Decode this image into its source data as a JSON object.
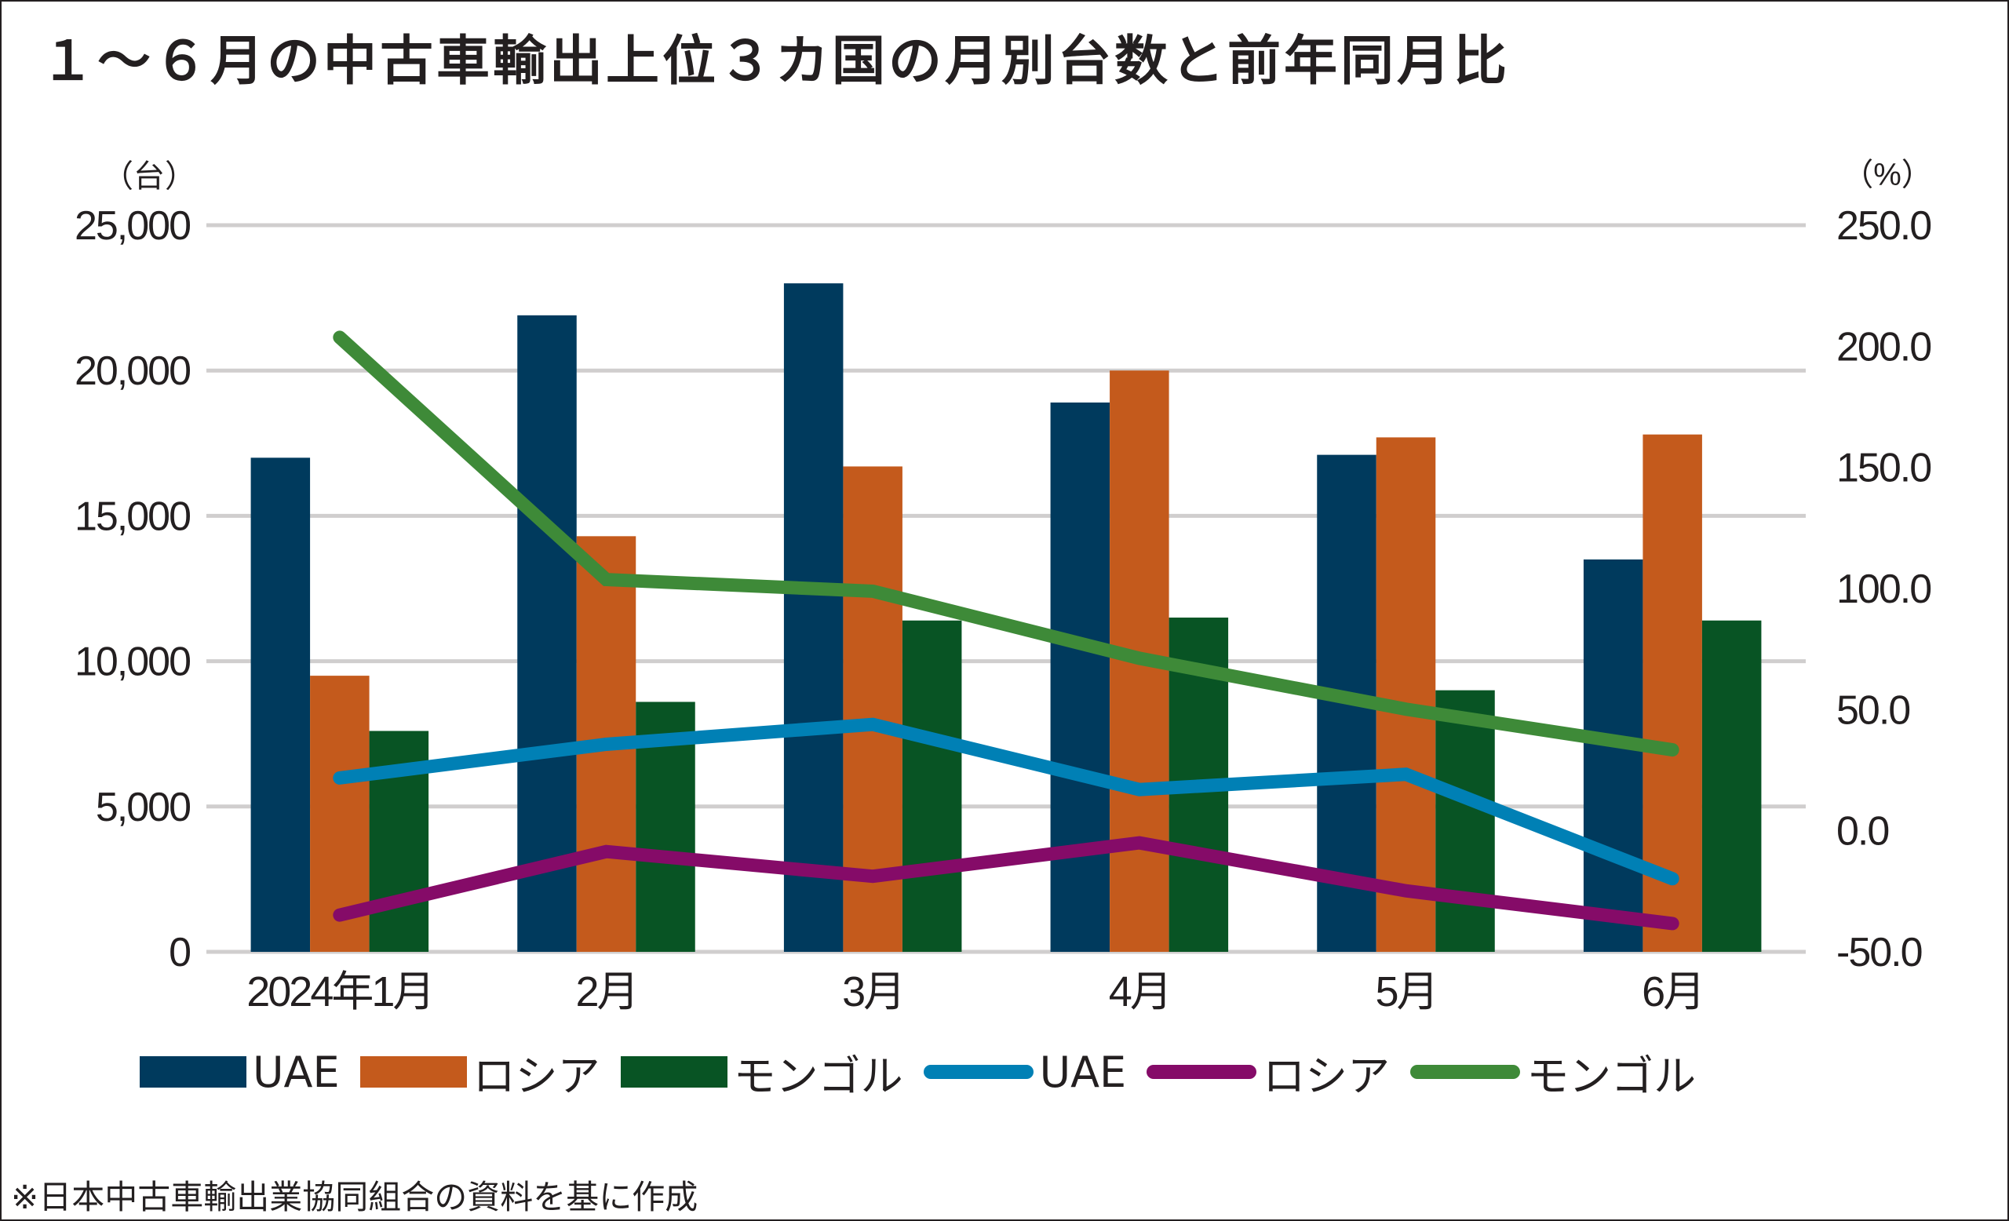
{
  "title": "１～６月の中古車輸出上位３カ国の月別台数と前年同月比",
  "footnote": "※日本中古車輸出業協同組合の資料を基に作成",
  "chart_data": {
    "type": "bar",
    "title": "１～６月の中古車輸出上位３カ国の月別台数と前年同月比",
    "categories": [
      "2024年1月",
      "2月",
      "3月",
      "4月",
      "5月",
      "6月"
    ],
    "left_axis": {
      "unit_label": "（台）",
      "ylim": [
        0,
        25000
      ],
      "ticks": [
        0,
        5000,
        10000,
        15000,
        20000,
        25000
      ],
      "tick_labels": [
        "0",
        "5,000",
        "10,000",
        "15,000",
        "20,000",
        "25,000"
      ]
    },
    "right_axis": {
      "unit_label": "（%）",
      "ylim": [
        -50,
        250
      ],
      "ticks": [
        -50,
        0,
        50,
        100,
        150,
        200,
        250
      ],
      "tick_labels": [
        "-50.0",
        "0.0",
        "50.0",
        "100.0",
        "150.0",
        "200.0",
        "250.0"
      ]
    },
    "grid": true,
    "legend_position": "bottom",
    "bar_series": [
      {
        "name": "UAE",
        "color": "#003a5d",
        "values": [
          17000,
          21900,
          23000,
          18900,
          17100,
          13500
        ]
      },
      {
        "name": "ロシア",
        "color": "#c45a1c",
        "values": [
          9500,
          14300,
          16700,
          20000,
          17700,
          17800
        ]
      },
      {
        "name": "モンゴル",
        "color": "#085424",
        "values": [
          7600,
          8600,
          11400,
          11500,
          9000,
          11400
        ]
      }
    ],
    "line_series": [
      {
        "name": "UAE",
        "color": "#0080b5",
        "axis": "right",
        "values": [
          21.8,
          35.7,
          43.9,
          17.0,
          23.3,
          -19.8
        ]
      },
      {
        "name": "ロシア",
        "color": "#850b68",
        "axis": "right",
        "values": [
          -34.8,
          -8.6,
          -18.8,
          -5.0,
          -24.8,
          -38.3
        ]
      },
      {
        "name": "モンゴル",
        "color": "#3e8a38",
        "axis": "right",
        "values": [
          203.7,
          103.7,
          98.9,
          71.2,
          50.2,
          33.4
        ]
      }
    ]
  },
  "legend": [
    {
      "label": "UAE",
      "kind": "bar",
      "color": "#003a5d"
    },
    {
      "label": "ロシア",
      "kind": "bar",
      "color": "#c45a1c"
    },
    {
      "label": "モンゴル",
      "kind": "bar",
      "color": "#085424"
    },
    {
      "label": "UAE",
      "kind": "line",
      "color": "#0080b5"
    },
    {
      "label": "ロシア",
      "kind": "line",
      "color": "#850b68"
    },
    {
      "label": "モンゴル",
      "kind": "line",
      "color": "#3e8a38"
    }
  ]
}
